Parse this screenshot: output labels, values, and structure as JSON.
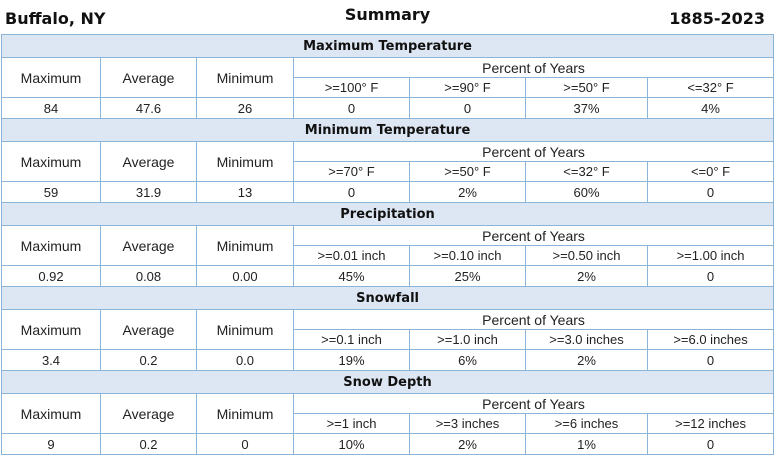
{
  "header": {
    "location": "Buffalo, NY",
    "title": "Summary",
    "years": "1885-2023"
  },
  "labels": {
    "maximum": "Maximum",
    "average": "Average",
    "minimum": "Minimum",
    "percent_of_years": "Percent of Years"
  },
  "sections": [
    {
      "title": "Maximum Temperature",
      "thresholds": [
        ">=100° F",
        ">=90° F",
        ">=50° F",
        "<=32° F"
      ],
      "max": "84",
      "avg": "47.6",
      "min": "26",
      "percents": [
        "0",
        "0",
        "37%",
        "4%"
      ]
    },
    {
      "title": "Minimum Temperature",
      "thresholds": [
        ">=70° F",
        ">=50° F",
        "<=32° F",
        "<=0° F"
      ],
      "max": "59",
      "avg": "31.9",
      "min": "13",
      "percents": [
        "0",
        "2%",
        "60%",
        "0"
      ]
    },
    {
      "title": "Precipitation",
      "thresholds": [
        ">=0.01 inch",
        ">=0.10 inch",
        ">=0.50 inch",
        ">=1.00 inch"
      ],
      "max": "0.92",
      "avg": "0.08",
      "min": "0.00",
      "percents": [
        "45%",
        "25%",
        "2%",
        "0"
      ]
    },
    {
      "title": "Snowfall",
      "thresholds": [
        ">=0.1 inch",
        ">=1.0 inch",
        ">=3.0 inches",
        ">=6.0 inches"
      ],
      "max": "3.4",
      "avg": "0.2",
      "min": "0.0",
      "percents": [
        "19%",
        "6%",
        "2%",
        "0"
      ]
    },
    {
      "title": "Snow Depth",
      "thresholds": [
        ">=1 inch",
        ">=3 inches",
        ">=6 inches",
        ">=12 inches"
      ],
      "max": "9",
      "avg": "0.2",
      "min": "0",
      "percents": [
        "10%",
        "2%",
        "1%",
        "0"
      ]
    }
  ]
}
